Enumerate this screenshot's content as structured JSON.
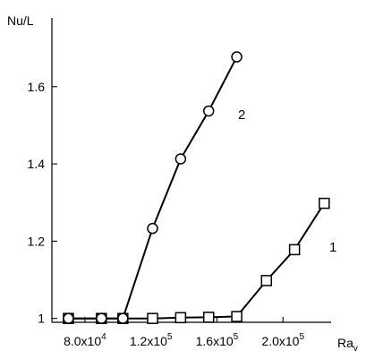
{
  "chart_data": {
    "type": "line",
    "title": "",
    "xlabel": {
      "main": "Ra",
      "sub": "v"
    },
    "ylabel": "Nu/L",
    "xlim": [
      60000,
      240000
    ],
    "ylim": [
      0.99,
      1.72
    ],
    "grid": false,
    "legend": "none",
    "x_ticks": [
      {
        "value": 80000,
        "mantissa": "8.0x10",
        "exp": "4"
      },
      {
        "value": 120000,
        "mantissa": "1.2x10",
        "exp": "5"
      },
      {
        "value": 160000,
        "mantissa": "1.6x10",
        "exp": "5"
      },
      {
        "value": 200000,
        "mantissa": "2.0x10",
        "exp": "5"
      }
    ],
    "y_ticks": [
      {
        "value": 1.0,
        "label": "1"
      },
      {
        "value": 1.2,
        "label": "1.2"
      },
      {
        "value": 1.4,
        "label": "1.4"
      },
      {
        "value": 1.6,
        "label": "1.6"
      }
    ],
    "series": [
      {
        "label": "1",
        "marker": "square",
        "x": [
          70000,
          90000,
          103000,
          121000,
          138000,
          155000,
          172000,
          190000,
          207000,
          225000
        ],
        "y": [
          1.0,
          1.0,
          1.0,
          1.0,
          1.002,
          1.003,
          1.005,
          1.098,
          1.178,
          1.298
        ]
      },
      {
        "label": "2",
        "marker": "circle",
        "x": [
          70000,
          90000,
          103000,
          121000,
          138000,
          155000,
          172000
        ],
        "y": [
          1.0,
          1.0,
          1.0,
          1.233,
          1.413,
          1.537,
          1.677
        ]
      }
    ]
  }
}
